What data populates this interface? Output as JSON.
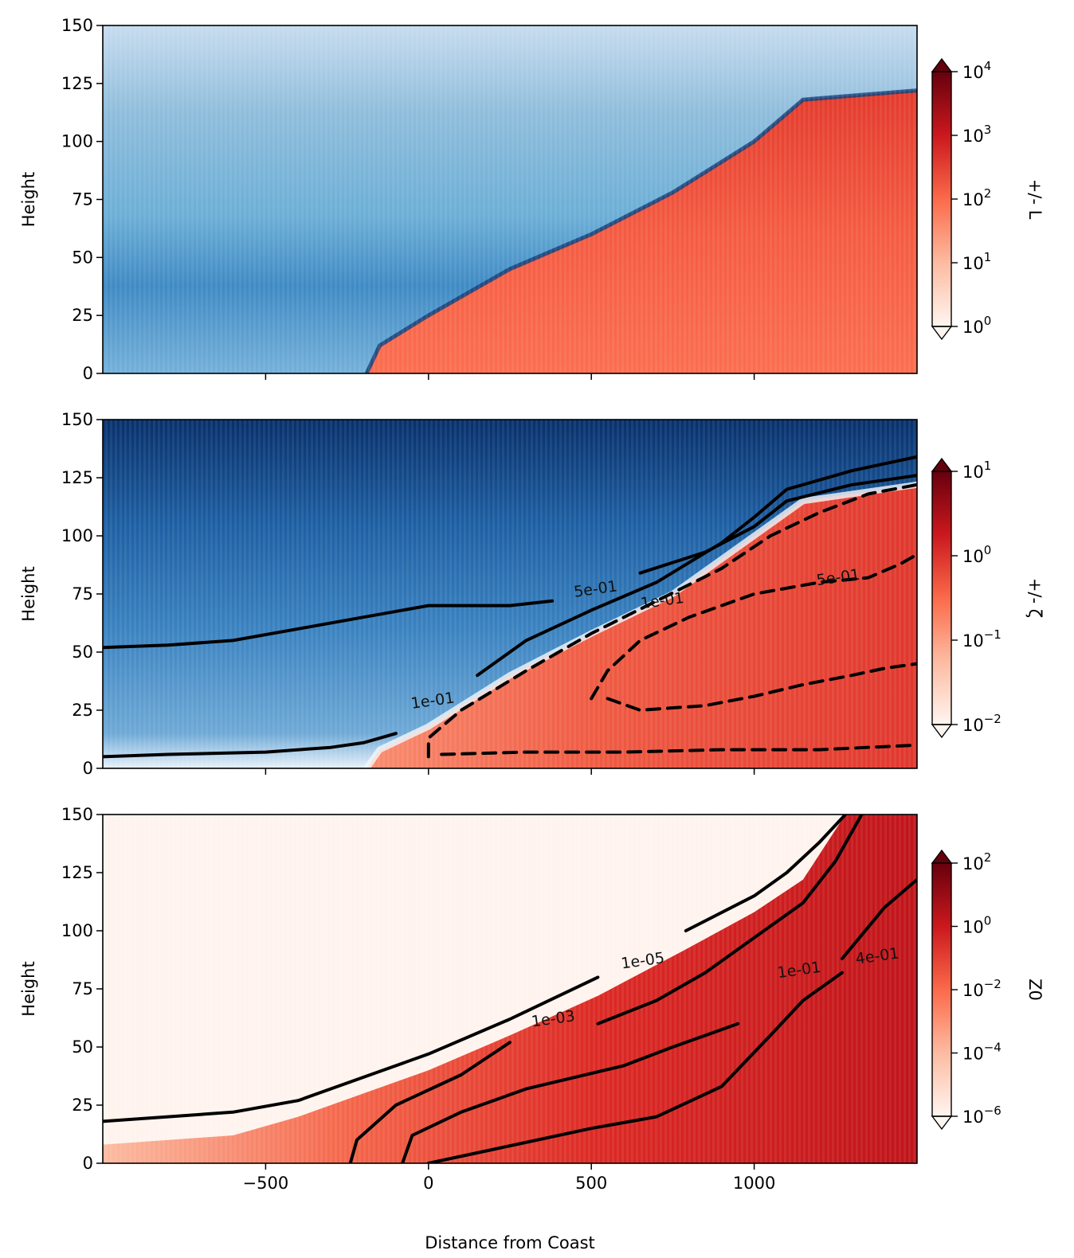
{
  "figure": {
    "xlabel": "Distance from Coast"
  },
  "chart_data": [
    {
      "type": "heatmap",
      "panel": "top",
      "ylabel": "Height",
      "xlim": [
        -1000,
        1500
      ],
      "ylim": [
        0,
        150
      ],
      "xticks": [
        -500,
        0,
        500,
        1000
      ],
      "xtick_labels_shown": false,
      "yticks": [
        0,
        25,
        50,
        75,
        100,
        125,
        150
      ],
      "colorbar": {
        "label": "+/- L",
        "colormap": "RdBu (diverging, log magnitude)",
        "scale": "log",
        "range": [
          1,
          10000
        ],
        "ticks": [
          {
            "base": "10",
            "exp": "0"
          },
          {
            "base": "10",
            "exp": "1"
          },
          {
            "base": "10",
            "exp": "2"
          },
          {
            "base": "10",
            "exp": "3"
          },
          {
            "base": "10",
            "exp": "4"
          }
        ],
        "extend": "both"
      },
      "regions": {
        "positive_red_boundary": [
          [
            -190,
            0
          ],
          [
            -150,
            12
          ],
          [
            0,
            25
          ],
          [
            250,
            45
          ],
          [
            500,
            60
          ],
          [
            750,
            78
          ],
          [
            1000,
            100
          ],
          [
            1150,
            118
          ],
          [
            1500,
            122
          ]
        ],
        "description_values": "blue (negative) above boundary, red (positive) below"
      },
      "contours": []
    },
    {
      "type": "heatmap",
      "panel": "middle",
      "ylabel": "Height",
      "xlim": [
        -1000,
        1500
      ],
      "ylim": [
        0,
        150
      ],
      "xticks": [
        -500,
        0,
        500,
        1000
      ],
      "xtick_labels_shown": false,
      "yticks": [
        0,
        25,
        50,
        75,
        100,
        125,
        150
      ],
      "colorbar": {
        "label": "+/- ζ",
        "colormap": "RdBu (diverging, log magnitude)",
        "scale": "log",
        "range": [
          0.01,
          10
        ],
        "ticks": [
          {
            "base": "10",
            "exp": "−2"
          },
          {
            "base": "10",
            "exp": "−1"
          },
          {
            "base": "10",
            "exp": "0"
          },
          {
            "base": "10",
            "exp": "1"
          }
        ],
        "extend": "both"
      },
      "contours": [
        {
          "level_label": "5e-01",
          "style": "solid",
          "points": [
            [
              -1000,
              52
            ],
            [
              -800,
              53
            ],
            [
              -600,
              55
            ],
            [
              -400,
              60
            ],
            [
              -200,
              65
            ],
            [
              0,
              70
            ],
            [
              250,
              70
            ],
            [
              380,
              72
            ]
          ]
        },
        {
          "level_label": "1e-01",
          "style": "solid",
          "points": [
            [
              -1000,
              5
            ],
            [
              -800,
              6
            ],
            [
              -500,
              7
            ],
            [
              -300,
              9
            ],
            [
              -200,
              11
            ],
            [
              -100,
              15
            ]
          ]
        },
        {
          "level_label": "1e-01",
          "style": "solid",
          "points": [
            [
              150,
              40
            ],
            [
              300,
              55
            ],
            [
              500,
              68
            ],
            [
              700,
              80
            ],
            [
              900,
              97
            ],
            [
              1000,
              108
            ],
            [
              1100,
              120
            ],
            [
              1300,
              128
            ],
            [
              1500,
              134
            ]
          ]
        },
        {
          "level_label": "5e-01",
          "style": "solid",
          "points": [
            [
              650,
              84
            ],
            [
              850,
              93
            ],
            [
              1000,
              104
            ],
            [
              1100,
              115
            ],
            [
              1300,
              122
            ],
            [
              1500,
              126
            ]
          ]
        },
        {
          "level_label": "1e-01",
          "style": "dashed",
          "points": [
            [
              0,
              5
            ],
            [
              0,
              13
            ],
            [
              100,
              25
            ],
            [
              300,
              42
            ],
            [
              500,
              58
            ],
            [
              700,
              72
            ],
            [
              900,
              86
            ],
            [
              1050,
              100
            ],
            [
              1200,
              110
            ],
            [
              1350,
              118
            ],
            [
              1500,
              122
            ]
          ]
        },
        {
          "level_label": "",
          "style": "dashed",
          "points": [
            [
              40,
              6
            ],
            [
              300,
              7
            ],
            [
              600,
              7
            ],
            [
              900,
              8
            ],
            [
              1200,
              8
            ],
            [
              1500,
              10
            ]
          ]
        },
        {
          "level_label": "5e-01",
          "style": "dashed",
          "points": [
            [
              500,
              30
            ],
            [
              550,
              42
            ],
            [
              650,
              55
            ],
            [
              800,
              65
            ],
            [
              1000,
              75
            ],
            [
              1200,
              80
            ],
            [
              1350,
              82
            ],
            [
              1450,
              88
            ],
            [
              1500,
              92
            ]
          ]
        },
        {
          "level_label": "",
          "style": "dashed",
          "points": [
            [
              550,
              30
            ],
            [
              650,
              25
            ],
            [
              850,
              27
            ],
            [
              1000,
              31
            ],
            [
              1150,
              36
            ],
            [
              1300,
              40
            ],
            [
              1400,
              43
            ],
            [
              1500,
              45
            ]
          ]
        }
      ],
      "contour_labels": [
        {
          "text": "5e-01",
          "x": 515,
          "y": 75
        },
        {
          "text": "1e-01",
          "x": 720,
          "y": 70
        },
        {
          "text": "5e-01",
          "x": 1260,
          "y": 80
        },
        {
          "text": "1e-01",
          "x": 15,
          "y": 27
        }
      ]
    },
    {
      "type": "heatmap",
      "panel": "bottom",
      "ylabel": "Height",
      "xlim": [
        -1000,
        1500
      ],
      "ylim": [
        0,
        150
      ],
      "xticks": [
        -500,
        0,
        500,
        1000
      ],
      "xtick_labels_shown": true,
      "xtick_labels": [
        "−500",
        "0",
        "500",
        "1000"
      ],
      "yticks": [
        0,
        25,
        50,
        75,
        100,
        125,
        150
      ],
      "colorbar": {
        "label": "Z0",
        "colormap": "Reds",
        "scale": "log",
        "range": [
          1e-06,
          100
        ],
        "ticks": [
          {
            "base": "10",
            "exp": "−6"
          },
          {
            "base": "10",
            "exp": "−4"
          },
          {
            "base": "10",
            "exp": "−2"
          },
          {
            "base": "10",
            "exp": "0"
          },
          {
            "base": "10",
            "exp": "2"
          }
        ],
        "extend": "both"
      },
      "contours": [
        {
          "level_label": "1e-05",
          "style": "solid",
          "points": [
            [
              -1000,
              18
            ],
            [
              -800,
              20
            ],
            [
              -600,
              22
            ],
            [
              -400,
              27
            ],
            [
              -200,
              37
            ],
            [
              0,
              47
            ],
            [
              250,
              62
            ],
            [
              520,
              80
            ]
          ]
        },
        {
          "level_label": "1e-05",
          "style": "solid",
          "points": [
            [
              790,
              100
            ],
            [
              1000,
              115
            ],
            [
              1100,
              125
            ],
            [
              1200,
              138
            ],
            [
              1280,
              150
            ]
          ]
        },
        {
          "level_label": "1e-03",
          "style": "solid",
          "points": [
            [
              -240,
              0
            ],
            [
              -220,
              10
            ],
            [
              -100,
              25
            ],
            [
              100,
              38
            ],
            [
              250,
              52
            ]
          ]
        },
        {
          "level_label": "1e-03",
          "style": "solid",
          "points": [
            [
              520,
              60
            ],
            [
              700,
              70
            ],
            [
              850,
              82
            ],
            [
              1000,
              97
            ],
            [
              1150,
              112
            ],
            [
              1250,
              130
            ],
            [
              1330,
              150
            ]
          ]
        },
        {
          "level_label": "1e-01",
          "style": "solid",
          "points": [
            [
              -80,
              0
            ],
            [
              -50,
              12
            ],
            [
              100,
              22
            ],
            [
              300,
              32
            ],
            [
              600,
              42
            ],
            [
              750,
              50
            ],
            [
              950,
              60
            ]
          ]
        },
        {
          "level_label": "4e-01",
          "style": "solid",
          "points": [
            [
              0,
              0
            ],
            [
              200,
              6
            ],
            [
              500,
              15
            ],
            [
              700,
              20
            ],
            [
              900,
              33
            ],
            [
              1050,
              55
            ],
            [
              1150,
              70
            ],
            [
              1270,
              82
            ]
          ]
        },
        {
          "level_label": "4e-01",
          "style": "solid",
          "points": [
            [
              1270,
              88
            ],
            [
              1400,
              110
            ],
            [
              1500,
              122
            ]
          ]
        }
      ],
      "contour_labels": [
        {
          "text": "1e-05",
          "x": 660,
          "y": 85
        },
        {
          "text": "1e-03",
          "x": 385,
          "y": 60
        },
        {
          "text": "1e-01",
          "x": 1140,
          "y": 81
        },
        {
          "text": "4e-01",
          "x": 1380,
          "y": 87
        }
      ]
    }
  ]
}
